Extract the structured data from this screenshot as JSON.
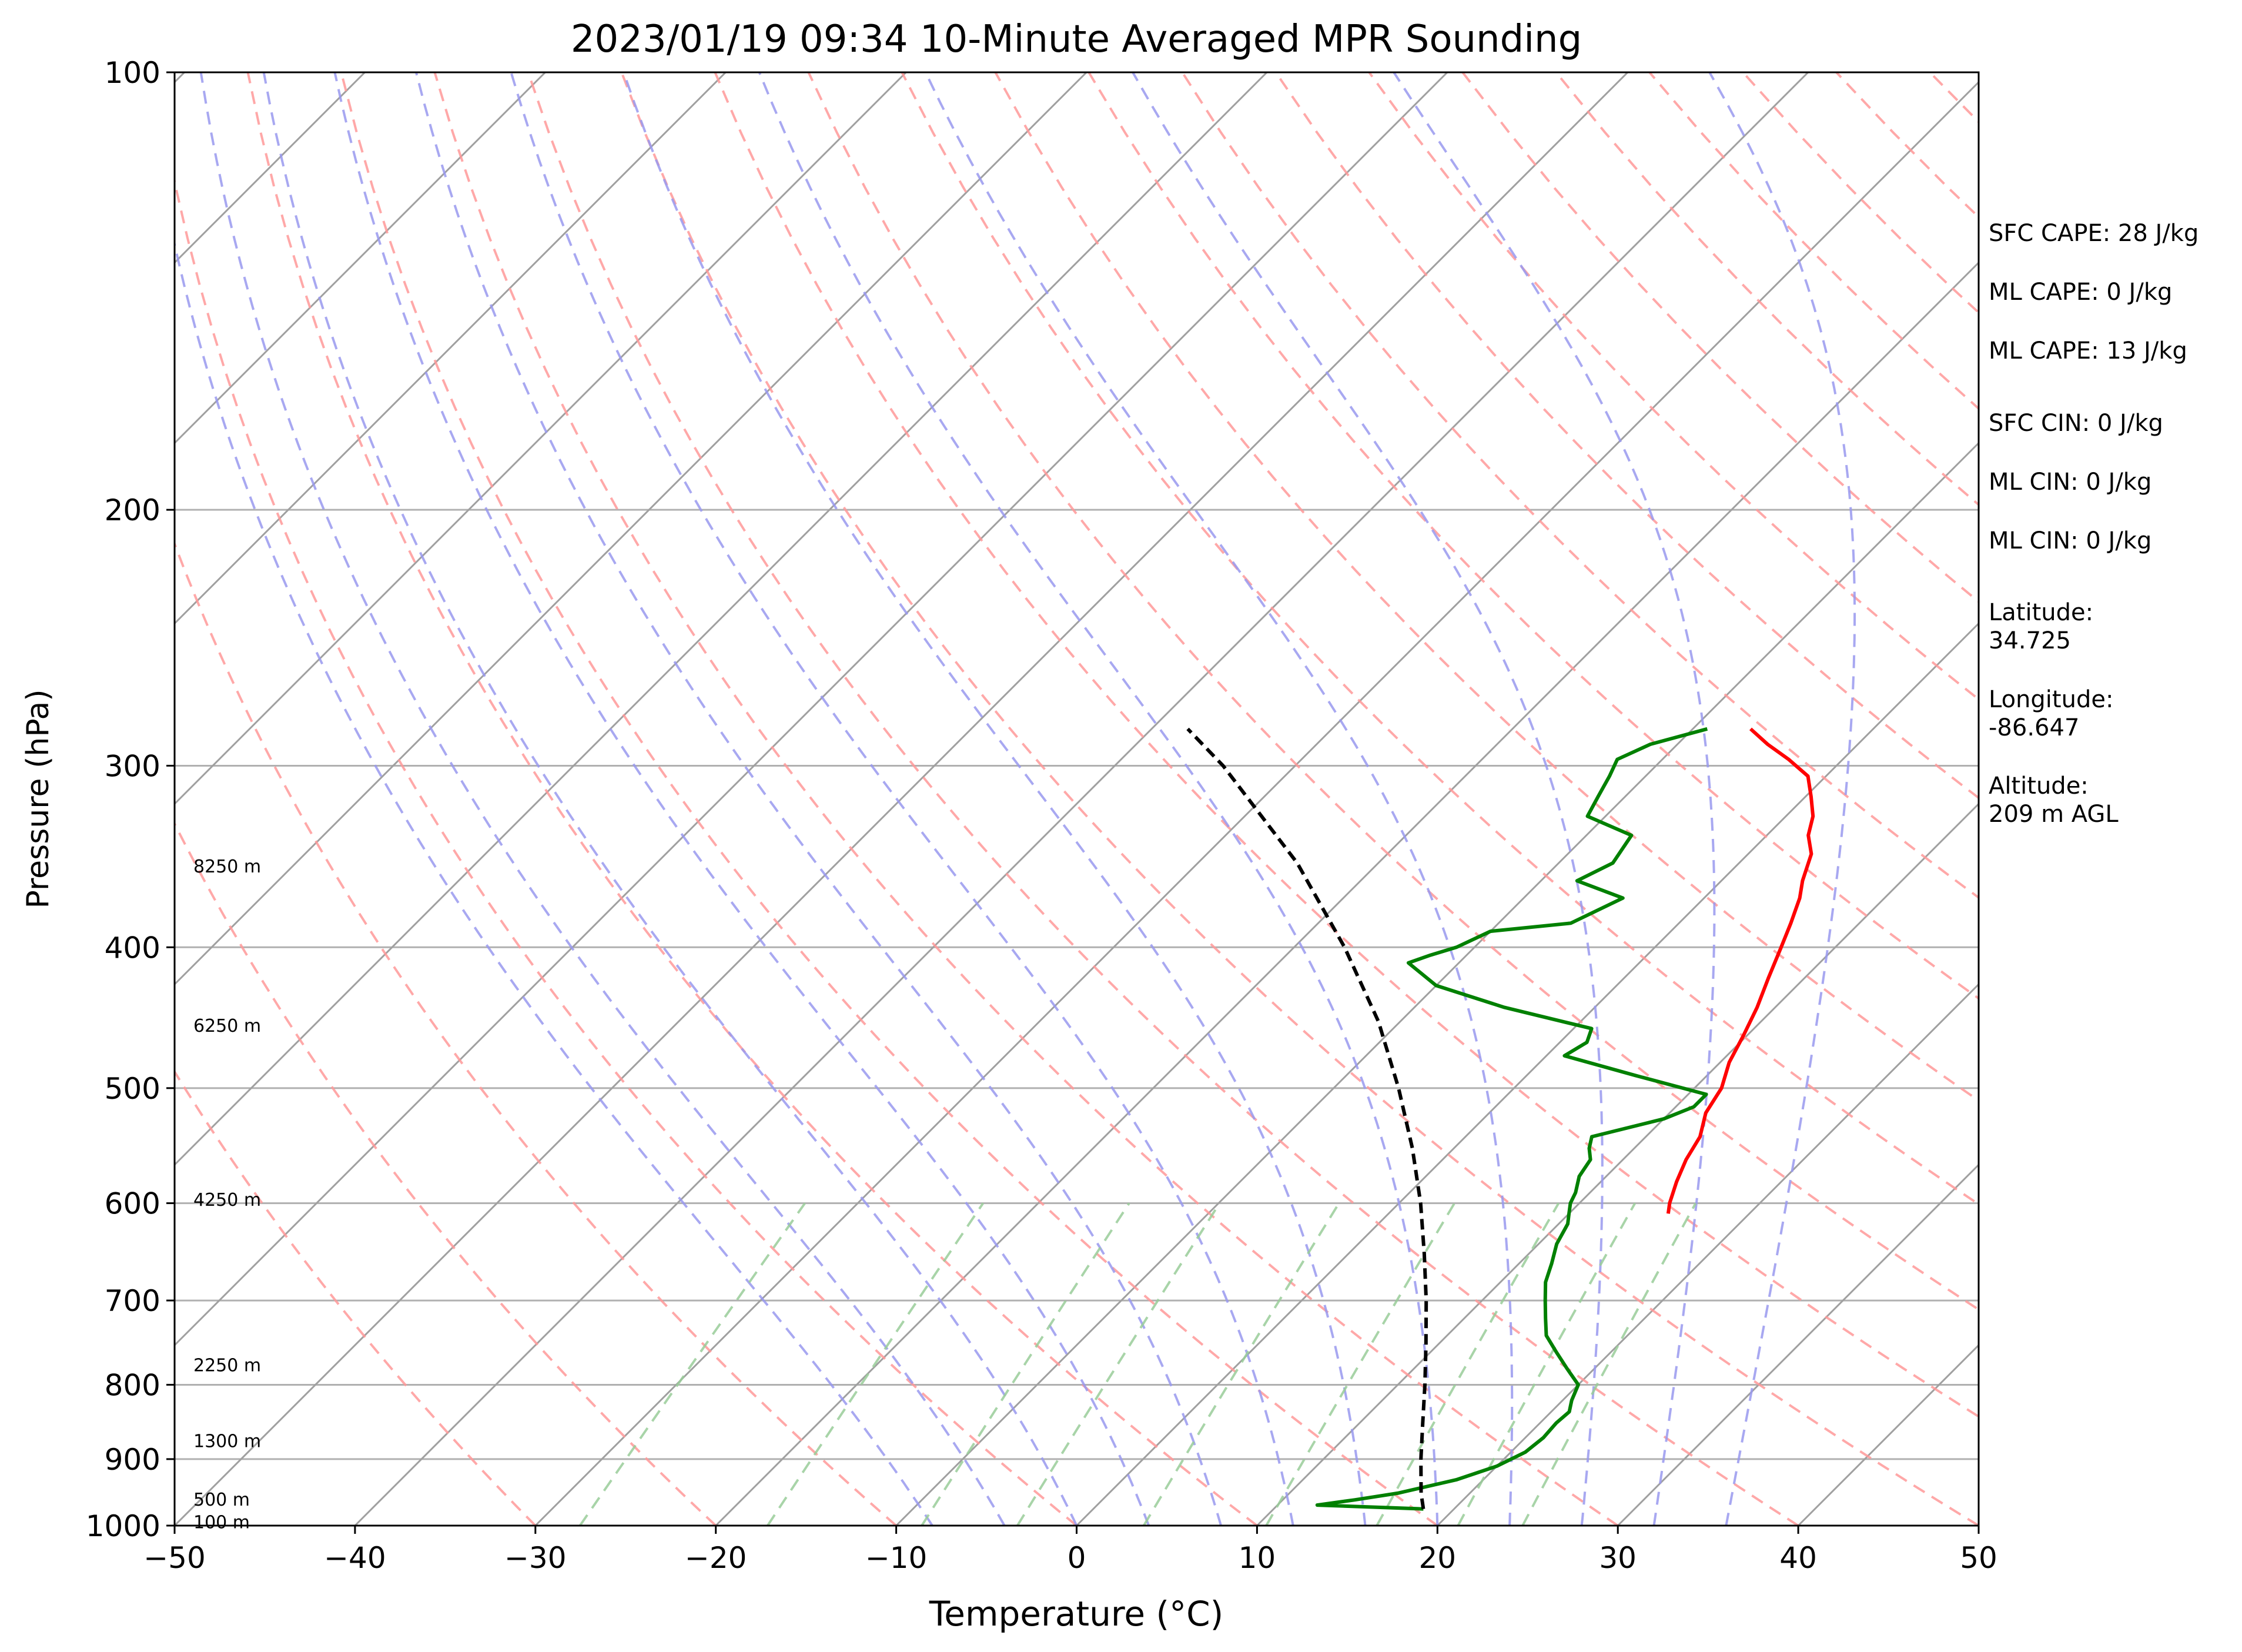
{
  "chart_data": {
    "type": "line",
    "title": "2023/01/19 09:34 10-Minute Averaged MPR Sounding",
    "xlabel": "Temperature (°C)",
    "ylabel": "Pressure (hPa)",
    "xlim": [
      -50,
      50
    ],
    "ylim": [
      1000,
      100
    ],
    "yscale": "log",
    "skew": "skew-T log-p",
    "x_ticks": [
      -50,
      -40,
      -30,
      -20,
      -10,
      0,
      10,
      20,
      30,
      40,
      50
    ],
    "x_tick_labels": [
      "−50",
      "−40",
      "−30",
      "−20",
      "−10",
      "0",
      "10",
      "20",
      "30",
      "40",
      "50"
    ],
    "y_ticks": [
      1000,
      900,
      800,
      700,
      600,
      500,
      400,
      300,
      200,
      100
    ],
    "y_tick_labels": [
      "1000",
      "900",
      "800",
      "700",
      "600",
      "500",
      "400",
      "300",
      "200",
      "100"
    ],
    "grid": true,
    "colors": {
      "temperature": "#ff0000",
      "dewpoint": "#008000",
      "parcel": "#000000",
      "isotherms": "#a0a0a0",
      "dry_adiabats": "#ff9999",
      "moist_adiabats": "#9999ee",
      "mixing_ratio": "#99cc99"
    },
    "series": [
      {
        "role": "temperature",
        "p": [
          283,
          290,
          297,
          305,
          315,
          325,
          335,
          345,
          360,
          370,
          385,
          400,
          420,
          440,
          460,
          480,
          500,
          520,
          540,
          560,
          580,
          600,
          610
        ],
        "values": [
          -6.8,
          -5.0,
          -3.0,
          -1.0,
          0.3,
          1.5,
          2.3,
          3.5,
          4.5,
          5.3,
          6.2,
          7.0,
          8.0,
          9.0,
          9.8,
          10.5,
          11.5,
          12.0,
          13.0,
          13.5,
          14.2,
          15.0,
          15.5
        ]
      },
      {
        "role": "dewpoint",
        "p": [
          974,
          968,
          960,
          950,
          930,
          910,
          890,
          870,
          850,
          835,
          820,
          800,
          780,
          760,
          740,
          720,
          700,
          680,
          660,
          640,
          620,
          610,
          600,
          590,
          575,
          560,
          550,
          540,
          525,
          515,
          505,
          490,
          475,
          465,
          455,
          440,
          425,
          410,
          405,
          400,
          390,
          385,
          370,
          360,
          350,
          335,
          325,
          315,
          305,
          297,
          290,
          283
        ],
        "values": [
          18.3,
          12.2,
          14.0,
          16.0,
          18.5,
          20.0,
          20.8,
          21.0,
          20.9,
          21.0,
          20.5,
          20.0,
          18.5,
          17.0,
          15.5,
          14.5,
          13.5,
          12.5,
          11.8,
          11.0,
          10.5,
          10.0,
          9.5,
          9.2,
          8.5,
          8.2,
          7.5,
          7.0,
          10.0,
          11.0,
          11.0,
          6.0,
          1.0,
          1.5,
          1.0,
          -5.0,
          -10.0,
          -12.8,
          -12.0,
          -11.0,
          -10.0,
          -6.0,
          -4.5,
          -8.0,
          -7.0,
          -7.5,
          -11.0,
          -11.5,
          -12.0,
          -12.5,
          -11.5,
          -9.2
        ]
      },
      {
        "role": "parcel",
        "p": [
          974,
          950,
          900,
          850,
          800,
          750,
          700,
          650,
          600,
          550,
          500,
          450,
          400,
          350,
          300,
          283
        ],
        "values": [
          18.3,
          17.3,
          15.4,
          13.5,
          11.5,
          9.3,
          6.9,
          4.2,
          1.2,
          -2.3,
          -6.4,
          -11.2,
          -17.2,
          -24.5,
          -34.0,
          -38.0
        ]
      }
    ],
    "height_labels": [
      {
        "p": 352,
        "text": "8250 m"
      },
      {
        "p": 453,
        "text": "6250 m"
      },
      {
        "p": 597,
        "text": "4250 m"
      },
      {
        "p": 776,
        "text": "2250 m"
      },
      {
        "p": 875,
        "text": "1300 m"
      },
      {
        "p": 960,
        "text": "500 m"
      },
      {
        "p": 995,
        "text": "100 m"
      }
    ],
    "annotations": [
      "SFC CAPE: 28 J/kg",
      "ML CAPE: 0 J/kg",
      "ML CAPE: 13 J/kg",
      "SFC CIN: 0 J/kg",
      "ML CIN: 0 J/kg",
      "ML CIN: 0 J/kg",
      "Latitude:\n34.725",
      "Longitude:\n-86.647",
      "Altitude:\n209 m AGL"
    ]
  }
}
